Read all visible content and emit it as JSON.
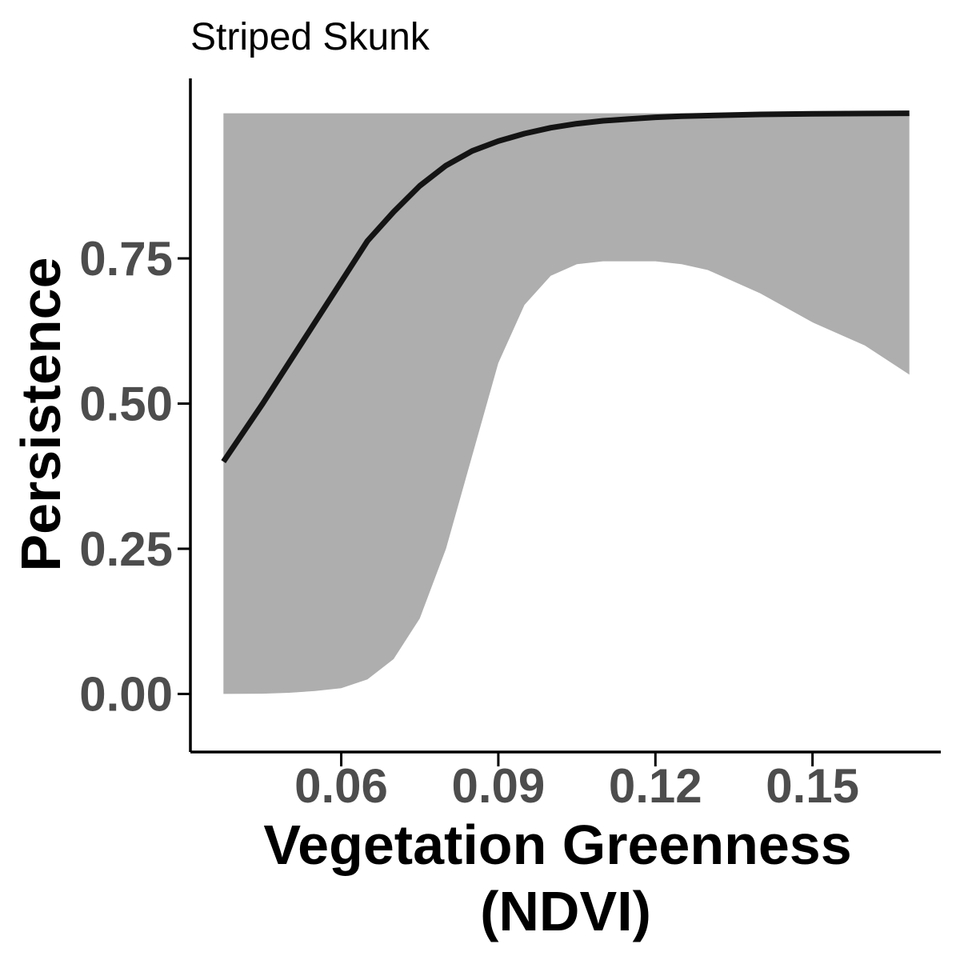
{
  "chart_data": {
    "type": "line",
    "title": "Striped Skunk",
    "xlabel_line1": "Vegetation Greenness",
    "xlabel_line2": "(NDVI)",
    "ylabel": "Persistence",
    "xlim": [
      0.0315,
      0.1745
    ],
    "ylim": [
      -0.1,
      1.06
    ],
    "x_ticks": [
      0.06,
      0.09,
      0.12,
      0.15
    ],
    "x_tick_labels": [
      "0.06",
      "0.09",
      "0.12",
      "0.15"
    ],
    "y_ticks": [
      0.0,
      0.25,
      0.5,
      0.75
    ],
    "y_tick_labels": [
      "0.00",
      "0.25",
      "0.50",
      "0.75"
    ],
    "grid": false,
    "legend": "none",
    "line_color": "#141414",
    "ribbon_color": "#aeaeae",
    "series": [
      {
        "x": [
          0.0375,
          0.045,
          0.05,
          0.055,
          0.06,
          0.065,
          0.07,
          0.075,
          0.08,
          0.085,
          0.09,
          0.095,
          0.1,
          0.105,
          0.11,
          0.115,
          0.12,
          0.125,
          0.13,
          0.14,
          0.15,
          0.16,
          0.1685
        ],
        "y": [
          0.4,
          0.5,
          0.57,
          0.64,
          0.71,
          0.78,
          0.83,
          0.875,
          0.91,
          0.935,
          0.952,
          0.965,
          0.975,
          0.982,
          0.987,
          0.99,
          0.993,
          0.995,
          0.996,
          0.998,
          0.999,
          0.9995,
          1.0
        ],
        "lower": [
          0.0,
          0.0005,
          0.002,
          0.005,
          0.01,
          0.025,
          0.06,
          0.13,
          0.25,
          0.41,
          0.57,
          0.67,
          0.72,
          0.74,
          0.745,
          0.745,
          0.745,
          0.74,
          0.73,
          0.69,
          0.64,
          0.6,
          0.55
        ],
        "upper": [
          1.0,
          1.0,
          1.0,
          1.0,
          1.0,
          1.0,
          1.0,
          1.0,
          1.0,
          1.0,
          1.0,
          1.0,
          1.0,
          1.0,
          1.0,
          1.0,
          1.0,
          1.0,
          1.0,
          1.0,
          1.0,
          1.0,
          1.0
        ]
      }
    ]
  }
}
